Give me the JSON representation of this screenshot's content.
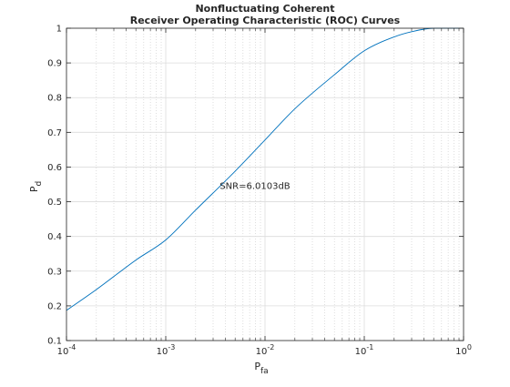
{
  "chart_data": {
    "type": "line",
    "title": [
      "Nonfluctuating Coherent",
      "Receiver Operating Characteristic (ROC) Curves"
    ],
    "xlabel": {
      "base": "P",
      "sub": "fa"
    },
    "ylabel": {
      "base": "P",
      "sub": "d"
    },
    "xscale": "log",
    "xlim": [
      0.0001,
      1
    ],
    "ylim": [
      0.1,
      1
    ],
    "grid": true,
    "minor_grid_x": true,
    "x_ticks": [
      {
        "value": 0.0001,
        "base": "10",
        "exp": "-4"
      },
      {
        "value": 0.001,
        "base": "10",
        "exp": "-3"
      },
      {
        "value": 0.01,
        "base": "10",
        "exp": "-2"
      },
      {
        "value": 0.1,
        "base": "10",
        "exp": "-1"
      },
      {
        "value": 1,
        "base": "10",
        "exp": "0"
      }
    ],
    "y_ticks": [
      {
        "value": 0.1,
        "label": "0.1"
      },
      {
        "value": 0.2,
        "label": "0.2"
      },
      {
        "value": 0.3,
        "label": "0.3"
      },
      {
        "value": 0.4,
        "label": "0.4"
      },
      {
        "value": 0.5,
        "label": "0.5"
      },
      {
        "value": 0.6,
        "label": "0.6"
      },
      {
        "value": 0.7,
        "label": "0.7"
      },
      {
        "value": 0.8,
        "label": "0.8"
      },
      {
        "value": 0.9,
        "label": "0.9"
      },
      {
        "value": 1,
        "label": "1"
      }
    ],
    "series": [
      {
        "color": "#0072bd",
        "x": [
          0.0001,
          0.0002,
          0.0005,
          0.001,
          0.002,
          0.005,
          0.01,
          0.02,
          0.05,
          0.1,
          0.2,
          0.3,
          0.5,
          0.7,
          1
        ],
        "y": [
          0.187,
          0.247,
          0.332,
          0.39,
          0.476,
          0.588,
          0.678,
          0.768,
          0.866,
          0.935,
          0.975,
          0.99,
          1,
          1,
          1
        ]
      }
    ],
    "annotations": [
      {
        "text": "SNR=6.0103dB",
        "x": 0.0035,
        "y": 0.545
      }
    ]
  }
}
